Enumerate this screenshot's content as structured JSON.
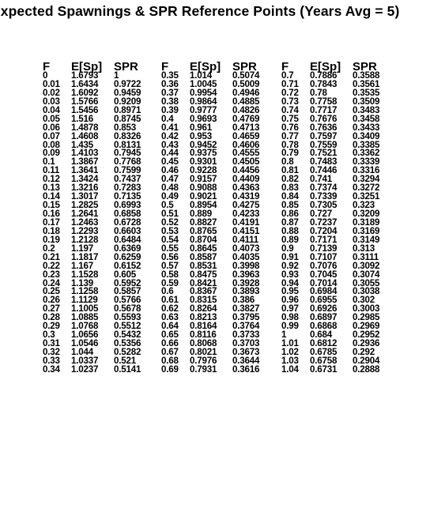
{
  "title": "Expected Spawnings & SPR Reference Points (Years Avg = 5)",
  "columns": [
    "F",
    "E[Sp]",
    "SPR"
  ],
  "panels": [
    {
      "rows": [
        [
          "0",
          "1.6793",
          "1"
        ],
        [
          "0.01",
          "1.6434",
          "0.9722"
        ],
        [
          "0.02",
          "1.6092",
          "0.9459"
        ],
        [
          "0.03",
          "1.5766",
          "0.9209"
        ],
        [
          "0.04",
          "1.5456",
          "0.8971"
        ],
        [
          "0.05",
          "1.516",
          "0.8745"
        ],
        [
          "0.06",
          "1.4878",
          "0.853"
        ],
        [
          "0.07",
          "1.4608",
          "0.8326"
        ],
        [
          "0.08",
          "1.435",
          "0.8131"
        ],
        [
          "0.09",
          "1.4103",
          "0.7945"
        ],
        [
          "0.1",
          "1.3867",
          "0.7768"
        ],
        [
          "0.11",
          "1.3641",
          "0.7599"
        ],
        [
          "0.12",
          "1.3424",
          "0.7437"
        ],
        [
          "0.13",
          "1.3216",
          "0.7283"
        ],
        [
          "0.14",
          "1.3017",
          "0.7135"
        ],
        [
          "0.15",
          "1.2825",
          "0.6993"
        ],
        [
          "0.16",
          "1.2641",
          "0.6858"
        ],
        [
          "0.17",
          "1.2463",
          "0.6728"
        ],
        [
          "0.18",
          "1.2293",
          "0.6603"
        ],
        [
          "0.19",
          "1.2128",
          "0.6484"
        ],
        [
          "0.2",
          "1.197",
          "0.6369"
        ],
        [
          "0.21",
          "1.1817",
          "0.6259"
        ],
        [
          "0.22",
          "1.167",
          "0.6152"
        ],
        [
          "0.23",
          "1.1528",
          "0.605"
        ],
        [
          "0.24",
          "1.139",
          "0.5952"
        ],
        [
          "0.25",
          "1.1258",
          "0.5857"
        ],
        [
          "0.26",
          "1.1129",
          "0.5766"
        ],
        [
          "0.27",
          "1.1005",
          "0.5678"
        ],
        [
          "0.28",
          "1.0885",
          "0.5593"
        ],
        [
          "0.29",
          "1.0768",
          "0.5512"
        ],
        [
          "0.3",
          "1.0656",
          "0.5432"
        ],
        [
          "0.31",
          "1.0546",
          "0.5356"
        ],
        [
          "0.32",
          "1.044",
          "0.5282"
        ],
        [
          "0.33",
          "1.0337",
          "0.521"
        ],
        [
          "0.34",
          "1.0237",
          "0.5141"
        ]
      ]
    },
    {
      "rows": [
        [
          "0.35",
          "1.014",
          "0.5074"
        ],
        [
          "0.36",
          "1.0045",
          "0.5009"
        ],
        [
          "0.37",
          "0.9954",
          "0.4946"
        ],
        [
          "0.38",
          "0.9864",
          "0.4885"
        ],
        [
          "0.39",
          "0.9777",
          "0.4826"
        ],
        [
          "0.4",
          "0.9693",
          "0.4769"
        ],
        [
          "0.41",
          "0.961",
          "0.4713"
        ],
        [
          "0.42",
          "0.953",
          "0.4659"
        ],
        [
          "0.43",
          "0.9452",
          "0.4606"
        ],
        [
          "0.44",
          "0.9375",
          "0.4555"
        ],
        [
          "0.45",
          "0.9301",
          "0.4505"
        ],
        [
          "0.46",
          "0.9228",
          "0.4456"
        ],
        [
          "0.47",
          "0.9157",
          "0.4409"
        ],
        [
          "0.48",
          "0.9088",
          "0.4363"
        ],
        [
          "0.49",
          "0.9021",
          "0.4319"
        ],
        [
          "0.5",
          "0.8954",
          "0.4275"
        ],
        [
          "0.51",
          "0.889",
          "0.4233"
        ],
        [
          "0.52",
          "0.8827",
          "0.4191"
        ],
        [
          "0.53",
          "0.8765",
          "0.4151"
        ],
        [
          "0.54",
          "0.8704",
          "0.4111"
        ],
        [
          "0.55",
          "0.8645",
          "0.4073"
        ],
        [
          "0.56",
          "0.8587",
          "0.4035"
        ],
        [
          "0.57",
          "0.8531",
          "0.3998"
        ],
        [
          "0.58",
          "0.8475",
          "0.3963"
        ],
        [
          "0.59",
          "0.8421",
          "0.3928"
        ],
        [
          "0.6",
          "0.8367",
          "0.3893"
        ],
        [
          "0.61",
          "0.8315",
          "0.386"
        ],
        [
          "0.62",
          "0.8264",
          "0.3827"
        ],
        [
          "0.63",
          "0.8213",
          "0.3795"
        ],
        [
          "0.64",
          "0.8164",
          "0.3764"
        ],
        [
          "0.65",
          "0.8116",
          "0.3733"
        ],
        [
          "0.66",
          "0.8068",
          "0.3703"
        ],
        [
          "0.67",
          "0.8021",
          "0.3673"
        ],
        [
          "0.68",
          "0.7976",
          "0.3644"
        ],
        [
          "0.69",
          "0.7931",
          "0.3616"
        ]
      ]
    },
    {
      "rows": [
        [
          "0.7",
          "0.7886",
          "0.3588"
        ],
        [
          "0.71",
          "0.7843",
          "0.3561"
        ],
        [
          "0.72",
          "0.78",
          "0.3535"
        ],
        [
          "0.73",
          "0.7758",
          "0.3509"
        ],
        [
          "0.74",
          "0.7717",
          "0.3483"
        ],
        [
          "0.75",
          "0.7676",
          "0.3458"
        ],
        [
          "0.76",
          "0.7636",
          "0.3433"
        ],
        [
          "0.77",
          "0.7597",
          "0.3409"
        ],
        [
          "0.78",
          "0.7559",
          "0.3385"
        ],
        [
          "0.79",
          "0.7521",
          "0.3362"
        ],
        [
          "0.8",
          "0.7483",
          "0.3339"
        ],
        [
          "0.81",
          "0.7446",
          "0.3316"
        ],
        [
          "0.82",
          "0.741",
          "0.3294"
        ],
        [
          "0.83",
          "0.7374",
          "0.3272"
        ],
        [
          "0.84",
          "0.7339",
          "0.3251"
        ],
        [
          "0.85",
          "0.7305",
          "0.323"
        ],
        [
          "0.86",
          "0.727",
          "0.3209"
        ],
        [
          "0.87",
          "0.7237",
          "0.3189"
        ],
        [
          "0.88",
          "0.7204",
          "0.3169"
        ],
        [
          "0.89",
          "0.7171",
          "0.3149"
        ],
        [
          "0.9",
          "0.7139",
          "0.313"
        ],
        [
          "0.91",
          "0.7107",
          "0.3111"
        ],
        [
          "0.92",
          "0.7076",
          "0.3092"
        ],
        [
          "0.93",
          "0.7045",
          "0.3074"
        ],
        [
          "0.94",
          "0.7014",
          "0.3055"
        ],
        [
          "0.95",
          "0.6984",
          "0.3038"
        ],
        [
          "0.96",
          "0.6955",
          "0.302"
        ],
        [
          "0.97",
          "0.6926",
          "0.3003"
        ],
        [
          "0.98",
          "0.6897",
          "0.2985"
        ],
        [
          "0.99",
          "0.6868",
          "0.2969"
        ],
        [
          "1",
          "0.684",
          "0.2952"
        ],
        [
          "1.01",
          "0.6812",
          "0.2936"
        ],
        [
          "1.02",
          "0.6785",
          "0.292"
        ],
        [
          "1.03",
          "0.6758",
          "0.2904"
        ],
        [
          "1.04",
          "0.6731",
          "0.2888"
        ]
      ]
    }
  ]
}
